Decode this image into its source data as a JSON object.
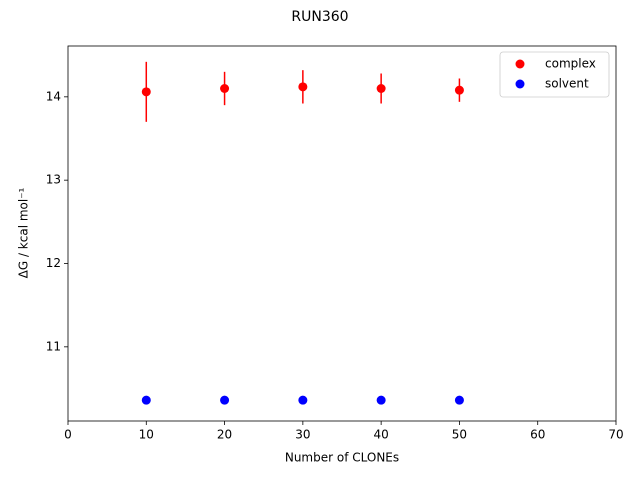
{
  "chart_data": {
    "type": "errorbar-scatter",
    "title": "RUN360",
    "x_label": "Number of CLONEs",
    "y_label": "ΔG / kcal mol⁻¹",
    "x": [
      10,
      20,
      30,
      40,
      50
    ],
    "series": [
      {
        "name": "complex",
        "color": "#ff0000",
        "values": [
          14.06,
          14.1,
          14.12,
          14.1,
          14.08
        ],
        "errors": [
          0.36,
          0.2,
          0.2,
          0.18,
          0.14
        ]
      },
      {
        "name": "solvent",
        "color": "#0000ff",
        "values": [
          10.36,
          10.36,
          10.36,
          10.36,
          10.36
        ],
        "errors": [
          0.01,
          0.01,
          0.01,
          0.01,
          0.01
        ]
      }
    ],
    "xlim": [
      0,
      70
    ],
    "xticks": [
      0,
      10,
      20,
      30,
      40,
      50,
      60,
      70
    ],
    "ylim": [
      10.11,
      14.61
    ],
    "yticks": [
      11,
      12,
      13,
      14
    ],
    "legend": "upper right",
    "grid": false
  }
}
